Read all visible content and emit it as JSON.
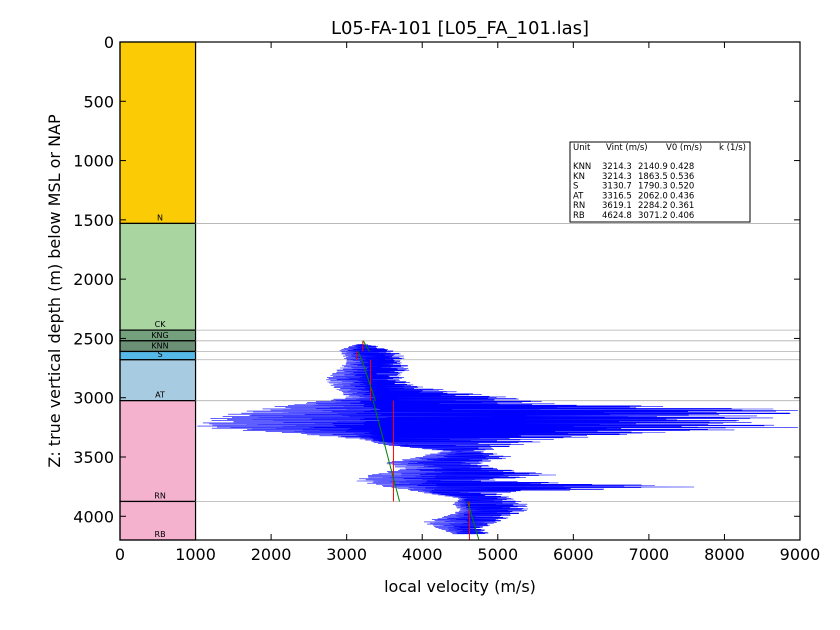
{
  "chart_data": {
    "type": "line",
    "title": "L05-FA-101 [L05_FA_101.las]",
    "xlabel": "local velocity (m/s)",
    "ylabel": "Z: true vertical depth (m) below MSL or NAP",
    "xlim": [
      0,
      9000
    ],
    "ylim": [
      4200,
      0
    ],
    "x_ticks": [
      "0",
      "1000",
      "2000",
      "3000",
      "4000",
      "5000",
      "6000",
      "7000",
      "8000",
      "9000"
    ],
    "y_ticks": [
      "0",
      "500",
      "1000",
      "1500",
      "2000",
      "2500",
      "3000",
      "3500",
      "4000"
    ],
    "grid": false,
    "formations": [
      {
        "name": "N",
        "top": 0,
        "base": 1530,
        "color": "#fbcb05"
      },
      {
        "name": "CK",
        "top": 1530,
        "base": 2430,
        "color": "#a8d5a0"
      },
      {
        "name": "KNG",
        "top": 2430,
        "base": 2520,
        "color": "#74a07d"
      },
      {
        "name": "KNN",
        "top": 2520,
        "base": 2610,
        "color": "#6c9076"
      },
      {
        "name": "S",
        "top": 2610,
        "base": 2680,
        "color": "#56b8e6"
      },
      {
        "name": "AT",
        "top": 2680,
        "base": 3025,
        "color": "#a7cbe0"
      },
      {
        "name": "RN",
        "top": 3025,
        "base": 3875,
        "color": "#f4b2cf"
      },
      {
        "name": "RB",
        "top": 3875,
        "base": 4200,
        "color": "#f4b2cf"
      }
    ],
    "formation_tops": [
      1530,
      2430,
      2520,
      2610,
      2680,
      3025,
      3875,
      4200
    ],
    "table": {
      "headers": [
        "Unit",
        "Vint (m/s)",
        "V0 (m/s)",
        "k (1/s)"
      ],
      "rows": [
        [
          "KNN",
          "3214.3",
          "2140.9",
          "0.428"
        ],
        [
          "KN",
          "3214.3",
          "1863.5",
          "0.536"
        ],
        [
          "S",
          "3130.7",
          "1790.3",
          "0.520"
        ],
        [
          "AT",
          "3316.5",
          "2062.0",
          "0.436"
        ],
        [
          "RN",
          "3619.1",
          "2284.2",
          "0.361"
        ],
        [
          "RB",
          "4624.8",
          "3071.2",
          "0.406"
        ]
      ]
    },
    "series": [
      {
        "color": "#0000ff",
        "depth": [
          2550,
          2600,
          2650,
          2700,
          2750,
          2800,
          2850,
          2900,
          2950,
          3000,
          3050,
          3100,
          3150,
          3200,
          3250,
          3300,
          3350,
          3400,
          3450,
          3500,
          3550,
          3600,
          3650,
          3700,
          3750,
          3800,
          3850,
          3900,
          3950,
          4000,
          4050,
          4100,
          4150
        ],
        "center": [
          3200,
          3150,
          3250,
          3300,
          3350,
          3300,
          3250,
          3300,
          3350,
          3400,
          3600,
          3700,
          3900,
          3700,
          3300,
          3500,
          3400,
          3700,
          4500,
          4450,
          4100,
          4400,
          4350,
          4200,
          4300,
          4150,
          4600,
          4600,
          4700,
          4650,
          4700,
          4550,
          4600
        ],
        "low": [
          3100,
          2900,
          2950,
          3000,
          2900,
          2800,
          2700,
          2800,
          2900,
          3000,
          2300,
          1800,
          1300,
          1100,
          1000,
          2200,
          3200,
          3500,
          4300,
          3900,
          3500,
          3700,
          3300,
          3100,
          3500,
          4000,
          4500,
          4400,
          4500,
          4300,
          4000,
          4200,
          4400
        ],
        "high": [
          3300,
          3600,
          3800,
          3700,
          3900,
          3700,
          3800,
          3900,
          4500,
          5200,
          5800,
          9000,
          9000,
          8200,
          9000,
          7000,
          5800,
          5300,
          4800,
          5200,
          4800,
          5000,
          5800,
          4900,
          7800,
          5000,
          5200,
          5400,
          5400,
          5200,
          5000,
          4800,
          4900
        ]
      },
      {
        "color": "#ff0000",
        "segments": [
          {
            "top": 2520,
            "base": 2610,
            "value": 3214.3
          },
          {
            "top": 2610,
            "base": 2680,
            "value": 3130.7
          },
          {
            "top": 2680,
            "base": 3025,
            "value": 3316.5
          },
          {
            "top": 3025,
            "base": 3875,
            "value": 3619.1
          },
          {
            "top": 3875,
            "base": 4200,
            "value": 4624.8
          }
        ]
      },
      {
        "color": "#008000",
        "segments": [
          {
            "top": 2520,
            "base": 2610,
            "v_top": 3220,
            "v_base": 3300
          },
          {
            "top": 2610,
            "base": 2680,
            "v_top": 3150,
            "v_base": 3200
          },
          {
            "top": 2680,
            "base": 3025,
            "v_top": 3200,
            "v_base": 3380
          },
          {
            "top": 3025,
            "base": 3875,
            "v_top": 3350,
            "v_base": 3700
          },
          {
            "top": 3875,
            "base": 4200,
            "v_top": 4600,
            "v_base": 4750
          }
        ]
      }
    ]
  }
}
